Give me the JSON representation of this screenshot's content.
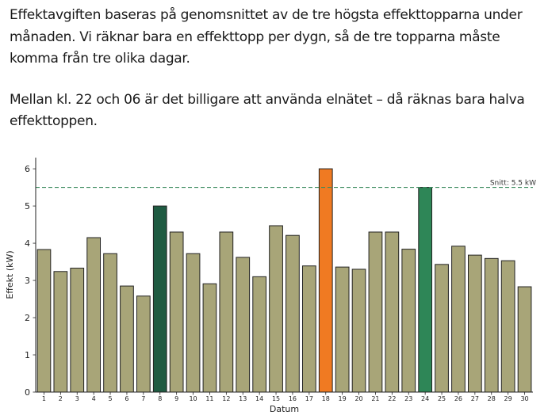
{
  "intro": {
    "paragraph1": "Effektavgiften baseras på genomsnittet av de tre högsta effekttopparna under månaden. Vi räknar bara en effekttopp per dygn, så de tre topparna måste komma från tre olika dagar.",
    "paragraph2": "Mellan kl. 22 och 06 är det billigare att använda elnätet – då räknas bara halva effekttoppen."
  },
  "chart_data": {
    "type": "bar",
    "categories": [
      "1",
      "2",
      "3",
      "4",
      "5",
      "6",
      "7",
      "8",
      "9",
      "10",
      "11",
      "12",
      "13",
      "14",
      "15",
      "16",
      "17",
      "18",
      "19",
      "20",
      "21",
      "22",
      "23",
      "24",
      "25",
      "26",
      "27",
      "28",
      "29",
      "30"
    ],
    "values": [
      3.83,
      3.24,
      3.33,
      4.15,
      3.72,
      2.85,
      2.58,
      5.0,
      4.3,
      3.72,
      2.91,
      4.3,
      3.62,
      3.1,
      4.47,
      4.21,
      3.39,
      6.0,
      3.36,
      3.3,
      4.3,
      4.3,
      3.84,
      5.5,
      3.43,
      3.92,
      3.68,
      3.59,
      3.53,
      2.83
    ],
    "xlabel": "Datum",
    "ylabel": "Effekt (kW)",
    "ylim": [
      0,
      6.3
    ],
    "yticks": [
      "0",
      "1",
      "2",
      "3",
      "4",
      "5",
      "6"
    ],
    "grid": false,
    "reference_line": {
      "value": 5.5,
      "label": "Snitt: 5.5 kW",
      "color": "#3a8a5e"
    },
    "colors": {
      "default": "#a8a578",
      "top_dark_green": "#1f5b42",
      "top_orange": "#f07a22",
      "top_green": "#2e8657",
      "edge": "#222222"
    },
    "highlight": {
      "8": "top_dark_green",
      "18": "top_orange",
      "24": "top_green"
    }
  }
}
